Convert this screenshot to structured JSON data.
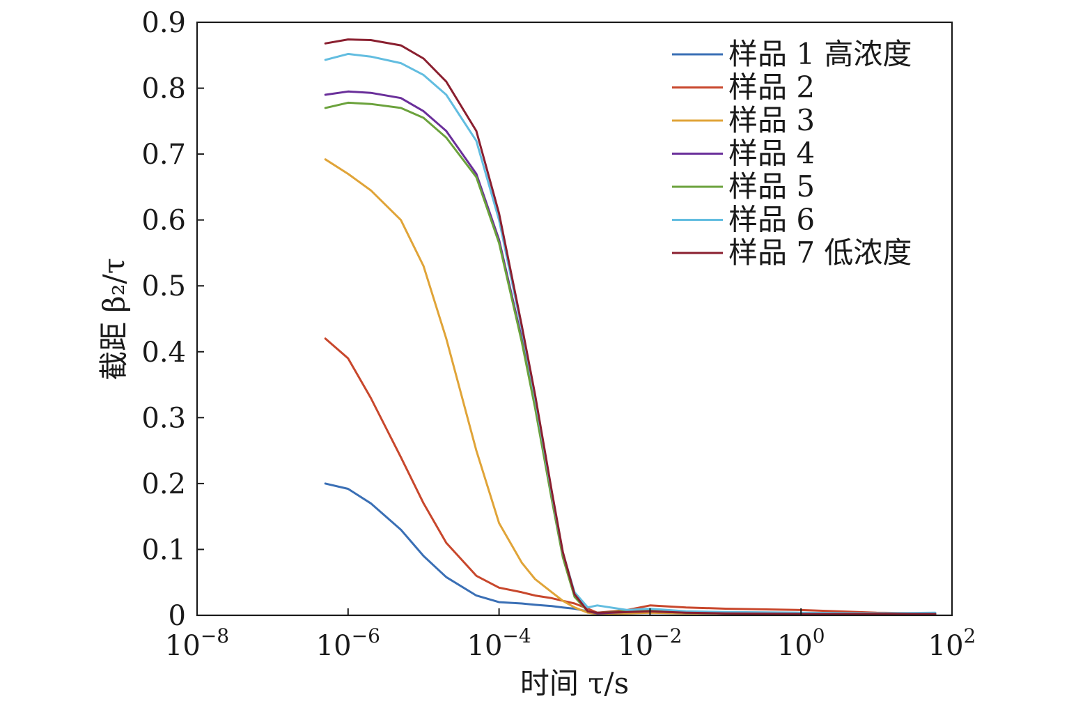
{
  "chart_data": {
    "type": "line",
    "xlabel": "时间 τ/s",
    "ylabel": "截距 β₂/τ",
    "x_scale": "log",
    "xlim": [
      1e-08,
      100
    ],
    "ylim": [
      0,
      0.9
    ],
    "grid": false,
    "legend_position": "top-right",
    "y_ticks": [
      0,
      0.1,
      0.2,
      0.3,
      0.4,
      0.5,
      0.6,
      0.7,
      0.8,
      0.9
    ],
    "y_tick_labels": [
      "0",
      "0.1",
      "0.2",
      "0.3",
      "0.4",
      "0.5",
      "0.6",
      "0.7",
      "0.8",
      "0.9"
    ],
    "x_ticks": [
      1e-08,
      1e-06,
      0.0001,
      0.01,
      1,
      100
    ],
    "x_tick_labels": [
      {
        "base": "10",
        "exp": "−8"
      },
      {
        "base": "10",
        "exp": "−6"
      },
      {
        "base": "10",
        "exp": "−4"
      },
      {
        "base": "10",
        "exp": "−2"
      },
      {
        "base": "10",
        "exp": "0"
      },
      {
        "base": "10",
        "exp": "2"
      }
    ],
    "x": [
      5e-07,
      1e-06,
      2e-06,
      5e-06,
      1e-05,
      2e-05,
      5e-05,
      0.0001,
      0.0002,
      0.0003,
      0.0005,
      0.0007,
      0.001,
      0.0015,
      0.002,
      0.005,
      0.01,
      0.03,
      0.1,
      1,
      10,
      60
    ],
    "series": [
      {
        "name": "样品 1 高浓度",
        "color": "#3a6fb5",
        "values": [
          0.2,
          0.192,
          0.17,
          0.13,
          0.09,
          0.058,
          0.03,
          0.02,
          0.018,
          0.016,
          0.014,
          0.012,
          0.01,
          0.006,
          0.003,
          0.004,
          0.006,
          0.004,
          0.004,
          0.003,
          0.002,
          0.002
        ]
      },
      {
        "name": "样品 2",
        "color": "#c8472c",
        "values": [
          0.42,
          0.39,
          0.33,
          0.24,
          0.17,
          0.11,
          0.06,
          0.042,
          0.035,
          0.03,
          0.026,
          0.022,
          0.018,
          0.01,
          0.004,
          0.008,
          0.015,
          0.012,
          0.01,
          0.008,
          0.004,
          0.003
        ]
      },
      {
        "name": "样品 3",
        "color": "#e0a438",
        "values": [
          0.692,
          0.67,
          0.645,
          0.6,
          0.53,
          0.42,
          0.25,
          0.14,
          0.08,
          0.055,
          0.035,
          0.022,
          0.012,
          0.004,
          0.002,
          0.003,
          0.004,
          0.003,
          0.003,
          0.002,
          0.002,
          0.002
        ]
      },
      {
        "name": "样品 4",
        "color": "#6a2f9a",
        "values": [
          0.79,
          0.795,
          0.793,
          0.785,
          0.765,
          0.735,
          0.67,
          0.57,
          0.42,
          0.32,
          0.18,
          0.09,
          0.03,
          0.006,
          0.003,
          0.005,
          0.006,
          0.004,
          0.003,
          0.002,
          0.002,
          0.002
        ]
      },
      {
        "name": "样品 5",
        "color": "#6ba23c",
        "values": [
          0.77,
          0.778,
          0.776,
          0.77,
          0.755,
          0.725,
          0.665,
          0.565,
          0.415,
          0.315,
          0.175,
          0.088,
          0.028,
          0.006,
          0.004,
          0.006,
          0.007,
          0.004,
          0.003,
          0.002,
          0.002,
          0.002
        ]
      },
      {
        "name": "样品 6",
        "color": "#62bde0",
        "values": [
          0.843,
          0.852,
          0.848,
          0.838,
          0.82,
          0.79,
          0.72,
          0.6,
          0.435,
          0.33,
          0.185,
          0.095,
          0.035,
          0.012,
          0.015,
          0.008,
          0.01,
          0.006,
          0.005,
          0.004,
          0.003,
          0.004
        ]
      },
      {
        "name": "样品 7 低浓度",
        "color": "#8a1f2f",
        "values": [
          0.868,
          0.874,
          0.873,
          0.865,
          0.845,
          0.81,
          0.735,
          0.61,
          0.44,
          0.335,
          0.188,
          0.096,
          0.032,
          0.006,
          0.004,
          0.005,
          0.006,
          0.004,
          0.003,
          0.002,
          0.002,
          0.002
        ]
      }
    ]
  }
}
